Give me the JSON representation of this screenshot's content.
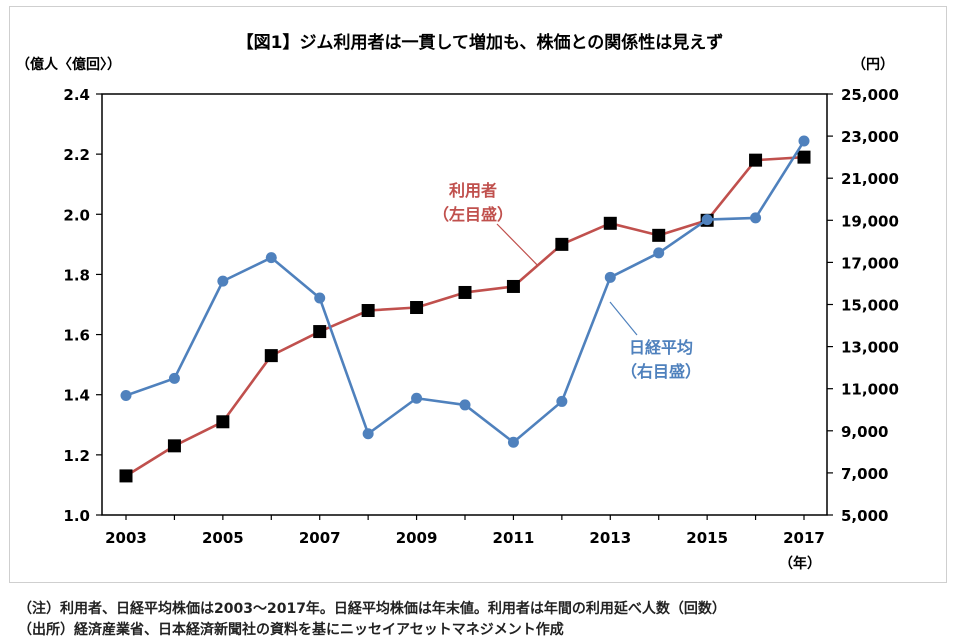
{
  "chart_data": {
    "type": "line",
    "title": "【図1】ジム利用者は一貫して増加も、株価との関係性は見えず",
    "y_left_unit": "（億人〈億回〉）",
    "y_right_unit": "（円）",
    "x_unit": "（年）",
    "x": [
      2003,
      2004,
      2005,
      2006,
      2007,
      2008,
      2009,
      2010,
      2011,
      2012,
      2013,
      2014,
      2015,
      2016,
      2017
    ],
    "x_tick_labels": [
      "2003",
      "2005",
      "2007",
      "2009",
      "2011",
      "2013",
      "2015",
      "2017"
    ],
    "y_left_ticks": [
      "1.0",
      "1.2",
      "1.4",
      "1.6",
      "1.8",
      "2.0",
      "2.2",
      "2.4"
    ],
    "y_right_ticks": [
      "5,000",
      "7,000",
      "9,000",
      "11,000",
      "13,000",
      "15,000",
      "17,000",
      "19,000",
      "21,000",
      "23,000",
      "25,000"
    ],
    "y_left_lim": [
      1.0,
      2.4
    ],
    "y_right_lim": [
      5000,
      25000
    ],
    "grid": false,
    "series": [
      {
        "name": "利用者",
        "annotation": [
          "利用者",
          "（左目盛）"
        ],
        "axis": "left",
        "color": "#c0504d",
        "marker": "square",
        "values": [
          1.13,
          1.23,
          1.31,
          1.53,
          1.61,
          1.68,
          1.69,
          1.74,
          1.76,
          1.9,
          1.97,
          1.93,
          1.98,
          2.18,
          2.19
        ]
      },
      {
        "name": "日経平均",
        "annotation": [
          "日経平均",
          "（右目盛）"
        ],
        "axis": "right",
        "color": "#4f81bd",
        "marker": "circle",
        "values": [
          10676,
          11489,
          16111,
          17226,
          15308,
          8860,
          10546,
          10229,
          8455,
          10395,
          16291,
          17451,
          19034,
          19114,
          22765
        ]
      }
    ]
  },
  "notes": {
    "line1": "（注）利用者、日経平均株価は2003～2017年。日経平均株価は年末値。利用者は年間の利用延べ人数（回数）",
    "line2": "（出所）経済産業省、日本経済新聞社の資料を基にニッセイアセットマネジメント作成"
  }
}
